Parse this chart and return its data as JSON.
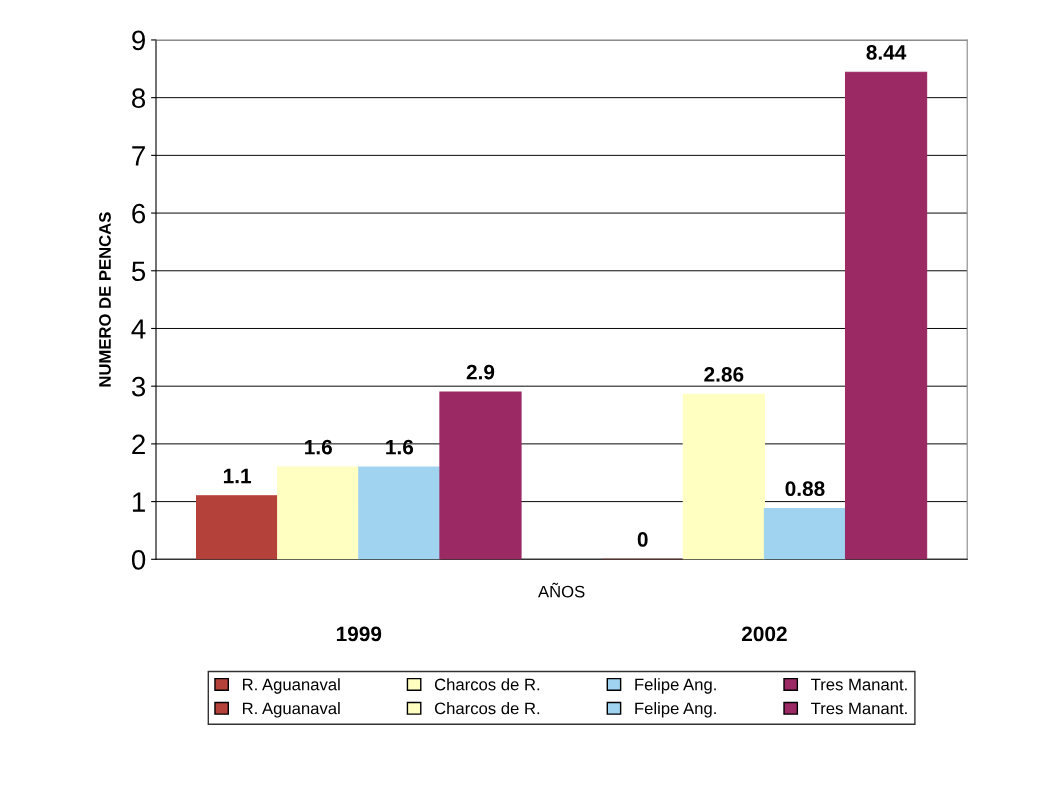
{
  "chart_data": {
    "type": "bar",
    "ylabel": "NUMERO DE PENCAS",
    "xlabel": "AÑOS",
    "categories": [
      "1999",
      "2002"
    ],
    "series": [
      {
        "name": "R. Aguanaval",
        "color": "#b5423a",
        "values": [
          1.1,
          0
        ]
      },
      {
        "name": "Charcos de R.",
        "color": "#ffffc2",
        "values": [
          1.6,
          2.86
        ]
      },
      {
        "name": "Felipe Ang.",
        "color": "#9fd3f0",
        "values": [
          1.6,
          0.88
        ]
      },
      {
        "name": "Tres Manant.",
        "color": "#9b2a64",
        "values": [
          2.9,
          8.44
        ]
      }
    ],
    "ylim": [
      0,
      9
    ],
    "yticks": [
      0,
      1,
      2,
      3,
      4,
      5,
      6,
      7,
      8,
      9
    ],
    "grid": "y",
    "legend": "bottom",
    "data_labels": true
  }
}
